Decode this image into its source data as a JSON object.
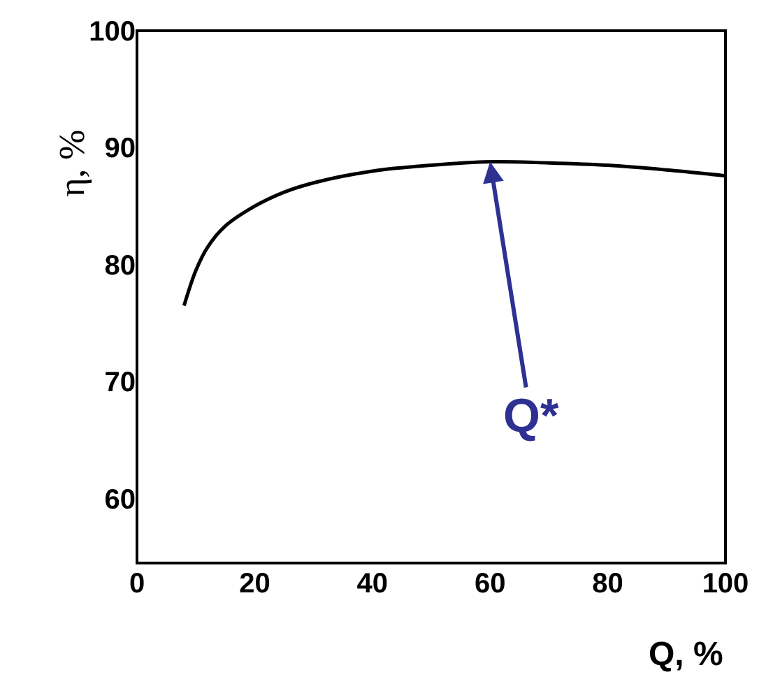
{
  "chart_data": {
    "type": "line",
    "xlabel": "Q, %",
    "ylabel": "η, %",
    "x": [
      8,
      10,
      12,
      15,
      20,
      25,
      30,
      40,
      50,
      60,
      70,
      80,
      90,
      100
    ],
    "series": [
      {
        "color": "#000000",
        "values": [
          76.5,
          79.5,
          81.5,
          83.3,
          85,
          86.2,
          87,
          88,
          88.5,
          88.8,
          88.7,
          88.5,
          88.1,
          87.6
        ]
      }
    ],
    "xlim": [
      0,
      100
    ],
    "xticks": [
      0,
      20,
      40,
      60,
      80,
      100
    ],
    "ylim": [
      54.5,
      100
    ],
    "yticks": [
      60,
      70,
      80,
      90,
      100
    ],
    "annotations": [
      {
        "text": "Q*",
        "x": 60,
        "y": 88.8
      }
    ],
    "marker": "none",
    "line_style": "solid"
  }
}
